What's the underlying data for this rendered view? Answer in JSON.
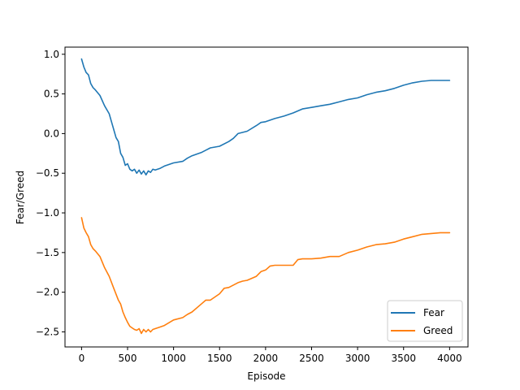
{
  "chart_data": {
    "type": "line",
    "title": "",
    "xlabel": "Episode",
    "ylabel": "Fear/Greed",
    "xlim": [
      -180,
      4200
    ],
    "ylim": [
      -2.69,
      1.09
    ],
    "xticks": [
      0,
      500,
      1000,
      1500,
      2000,
      2500,
      3000,
      3500,
      4000
    ],
    "xtick_labels": [
      "0",
      "500",
      "1000",
      "1500",
      "2000",
      "2500",
      "3000",
      "3500",
      "4000"
    ],
    "yticks": [
      1.0,
      0.5,
      0.0,
      -0.5,
      -1.0,
      -1.5,
      -2.0,
      -2.5
    ],
    "ytick_labels": [
      "1.0",
      "0.5",
      "0.0",
      "−0.5",
      "−1.0",
      "−1.5",
      "−2.0",
      "−2.5"
    ],
    "grid": false,
    "legend": {
      "position": "lower-right"
    },
    "series": [
      {
        "name": "Fear",
        "color": "#1f77b4",
        "x": [
          0,
          25,
          50,
          75,
          100,
          125,
          150,
          200,
          250,
          300,
          325,
          350,
          375,
          400,
          425,
          450,
          475,
          500,
          525,
          550,
          575,
          600,
          625,
          650,
          675,
          700,
          725,
          750,
          775,
          800,
          850,
          900,
          1000,
          1100,
          1150,
          1200,
          1300,
          1400,
          1450,
          1500,
          1600,
          1650,
          1700,
          1800,
          1900,
          1950,
          2000,
          2100,
          2200,
          2300,
          2400,
          2500,
          2600,
          2700,
          2800,
          2900,
          3000,
          3100,
          3200,
          3300,
          3400,
          3500,
          3600,
          3700,
          3800,
          3900,
          4000
        ],
        "y": [
          0.94,
          0.84,
          0.77,
          0.74,
          0.63,
          0.58,
          0.55,
          0.48,
          0.35,
          0.25,
          0.15,
          0.05,
          -0.05,
          -0.1,
          -0.25,
          -0.3,
          -0.4,
          -0.38,
          -0.45,
          -0.47,
          -0.45,
          -0.5,
          -0.46,
          -0.51,
          -0.47,
          -0.52,
          -0.47,
          -0.49,
          -0.45,
          -0.46,
          -0.44,
          -0.41,
          -0.37,
          -0.35,
          -0.31,
          -0.28,
          -0.24,
          -0.18,
          -0.17,
          -0.16,
          -0.1,
          -0.06,
          0.0,
          0.03,
          0.1,
          0.14,
          0.15,
          0.19,
          0.22,
          0.26,
          0.31,
          0.33,
          0.35,
          0.37,
          0.4,
          0.43,
          0.45,
          0.49,
          0.52,
          0.54,
          0.57,
          0.61,
          0.64,
          0.66,
          0.67,
          0.67,
          0.67
        ]
      },
      {
        "name": "Greed",
        "color": "#ff7f0e",
        "x": [
          0,
          25,
          50,
          75,
          100,
          125,
          150,
          200,
          250,
          300,
          350,
          400,
          425,
          450,
          475,
          500,
          525,
          550,
          575,
          600,
          625,
          650,
          675,
          700,
          725,
          750,
          775,
          800,
          850,
          900,
          1000,
          1100,
          1150,
          1200,
          1300,
          1350,
          1400,
          1500,
          1550,
          1600,
          1700,
          1750,
          1800,
          1900,
          1950,
          2000,
          2050,
          2100,
          2200,
          2300,
          2350,
          2400,
          2500,
          2600,
          2700,
          2800,
          2900,
          3000,
          3100,
          3200,
          3300,
          3400,
          3500,
          3600,
          3700,
          3800,
          3900,
          4000
        ],
        "y": [
          -1.06,
          -1.19,
          -1.25,
          -1.3,
          -1.4,
          -1.45,
          -1.48,
          -1.55,
          -1.69,
          -1.8,
          -1.95,
          -2.1,
          -2.15,
          -2.25,
          -2.32,
          -2.38,
          -2.43,
          -2.45,
          -2.47,
          -2.48,
          -2.46,
          -2.52,
          -2.47,
          -2.5,
          -2.47,
          -2.5,
          -2.47,
          -2.46,
          -2.44,
          -2.42,
          -2.35,
          -2.32,
          -2.28,
          -2.25,
          -2.15,
          -2.1,
          -2.1,
          -2.02,
          -1.95,
          -1.94,
          -1.88,
          -1.86,
          -1.85,
          -1.8,
          -1.74,
          -1.72,
          -1.67,
          -1.66,
          -1.66,
          -1.66,
          -1.59,
          -1.58,
          -1.58,
          -1.57,
          -1.55,
          -1.55,
          -1.5,
          -1.47,
          -1.43,
          -1.4,
          -1.39,
          -1.37,
          -1.33,
          -1.3,
          -1.27,
          -1.26,
          -1.25,
          -1.25
        ]
      }
    ]
  }
}
